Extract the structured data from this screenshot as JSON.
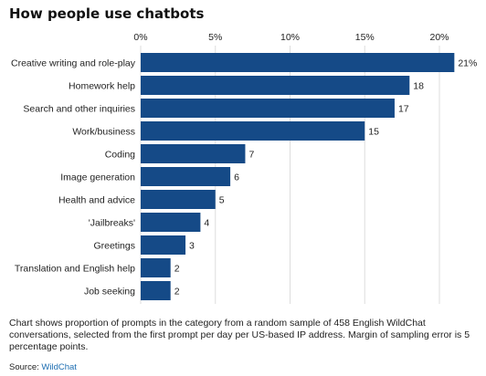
{
  "chart_data": {
    "type": "bar",
    "orientation": "horizontal",
    "title": "How people use chatbots",
    "categories": [
      "Creative writing and role-play",
      "Homework help",
      "Search and other inquiries",
      "Work/business",
      "Coding",
      "Image generation",
      "Health and advice",
      "'Jailbreaks'",
      "Greetings",
      "Translation and English help",
      "Job seeking"
    ],
    "values": [
      21,
      18,
      17,
      15,
      7,
      6,
      5,
      4,
      3,
      2,
      2
    ],
    "value_labels": [
      "21%",
      "18",
      "17",
      "15",
      "7",
      "6",
      "5",
      "4",
      "3",
      "2",
      "2"
    ],
    "xlim": [
      0,
      21
    ],
    "ticks": [
      0,
      5,
      10,
      15,
      20
    ],
    "tick_labels": [
      "0%",
      "5%",
      "10%",
      "15%",
      "20%"
    ],
    "grid": true,
    "bar_color": "#154a87",
    "grid_color": "#dddddd"
  },
  "note": "Chart shows proportion of prompts in the category from a random sample of 458 English WildChat conversations, selected from the first prompt per day per US-based IP address. Margin of sampling error is 5 percentage points.",
  "source": {
    "label": "Source:",
    "link_text": "WildChat"
  }
}
